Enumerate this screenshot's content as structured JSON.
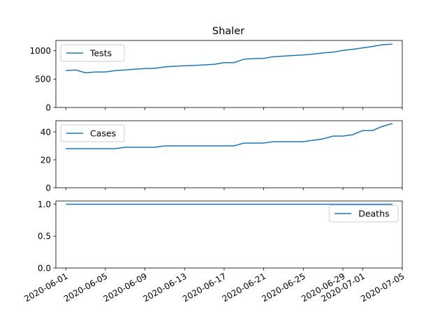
{
  "chart_data": {
    "title": "Shaler",
    "type": "line",
    "dates": [
      "2020-06-01",
      "2020-06-02",
      "2020-06-03",
      "2020-06-04",
      "2020-06-05",
      "2020-06-06",
      "2020-06-07",
      "2020-06-08",
      "2020-06-09",
      "2020-06-10",
      "2020-06-11",
      "2020-06-12",
      "2020-06-13",
      "2020-06-14",
      "2020-06-15",
      "2020-06-16",
      "2020-06-17",
      "2020-06-18",
      "2020-06-19",
      "2020-06-20",
      "2020-06-21",
      "2020-06-22",
      "2020-06-23",
      "2020-06-24",
      "2020-06-25",
      "2020-06-26",
      "2020-06-27",
      "2020-06-28",
      "2020-06-29",
      "2020-06-30",
      "2020-07-01",
      "2020-07-02",
      "2020-07-03",
      "2020-07-04"
    ],
    "x_tick_labels": [
      "2020-06-01",
      "2020-06-05",
      "2020-06-09",
      "2020-06-13",
      "2020-06-17",
      "2020-06-21",
      "2020-06-25",
      "2020-06-29",
      "2020-07-01",
      "2020-07-05"
    ],
    "x_range": [
      "2020-05-31",
      "2020-07-05"
    ],
    "line_color": "#1f77b4",
    "panels": [
      {
        "series_name": "Tests",
        "legend": "upper-left",
        "ylim": [
          0,
          1180
        ],
        "yticks": [
          0,
          500,
          1000
        ],
        "values": [
          650,
          660,
          610,
          625,
          625,
          650,
          660,
          675,
          685,
          690,
          715,
          725,
          735,
          740,
          750,
          760,
          790,
          790,
          850,
          860,
          865,
          895,
          905,
          915,
          925,
          940,
          960,
          975,
          1005,
          1025,
          1050,
          1075,
          1105,
          1115
        ]
      },
      {
        "series_name": "Cases",
        "legend": "upper-left",
        "ylim": [
          0,
          48
        ],
        "yticks": [
          0,
          20,
          40
        ],
        "values": [
          28,
          28,
          28,
          28,
          28,
          28,
          29,
          29,
          29,
          29,
          30,
          30,
          30,
          30,
          30,
          30,
          30,
          30,
          32,
          32,
          32,
          33,
          33,
          33,
          33,
          34,
          35,
          37,
          37,
          38,
          41,
          41,
          44,
          46
        ]
      },
      {
        "series_name": "Deaths",
        "legend": "upper-right",
        "ylim": [
          0,
          1.05
        ],
        "yticks": [
          0.0,
          0.5,
          1.0
        ],
        "values": [
          1,
          1,
          1,
          1,
          1,
          1,
          1,
          1,
          1,
          1,
          1,
          1,
          1,
          1,
          1,
          1,
          1,
          1,
          1,
          1,
          1,
          1,
          1,
          1,
          1,
          1,
          1,
          1,
          1,
          1,
          1,
          1,
          1,
          1
        ]
      }
    ]
  }
}
